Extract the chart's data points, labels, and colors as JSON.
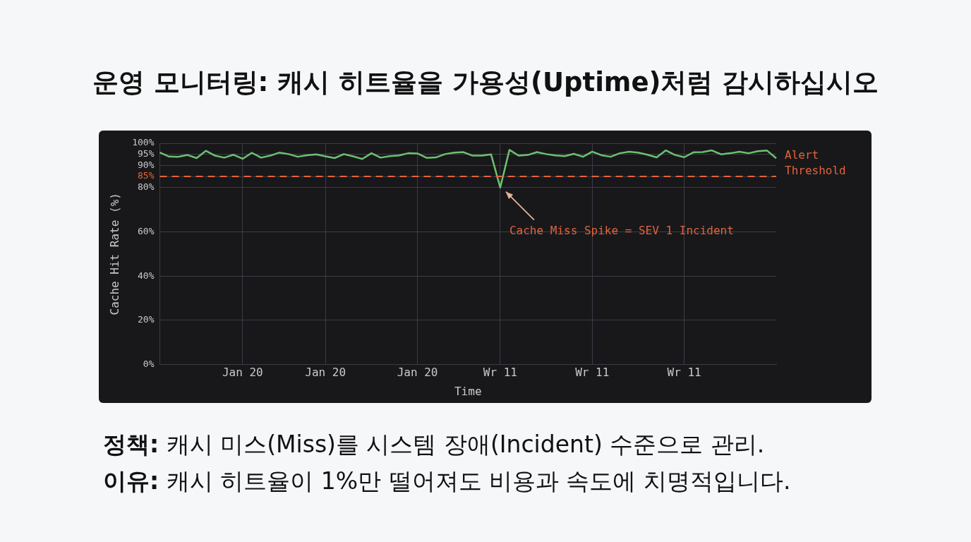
{
  "chart_data": {
    "type": "line",
    "title": "운영 모니터링: 캐시 히트율을 가용성(Uptime)처럼 감시하십시오",
    "xlabel": "Time",
    "ylabel": "Cache Hit Rate (%)",
    "categories": [
      null,
      null,
      null,
      null,
      null,
      null,
      null,
      null,
      null,
      "Jan 20",
      null,
      null,
      null,
      null,
      null,
      null,
      null,
      null,
      "Jan 20",
      null,
      null,
      null,
      null,
      null,
      null,
      null,
      null,
      null,
      "Jan 20",
      null,
      null,
      null,
      null,
      null,
      null,
      null,
      null,
      "Wr 11",
      null,
      null,
      null,
      null,
      null,
      null,
      null,
      null,
      null,
      "Wr 11",
      null,
      null,
      null,
      null,
      null,
      null,
      null,
      null,
      null,
      "Wr 11",
      null,
      null,
      null,
      null,
      null,
      null,
      null,
      null,
      null,
      null
    ],
    "series": [
      {
        "color": "#6cc070",
        "values": [
          95.8,
          94.0,
          93.9,
          94.7,
          93.3,
          96.6,
          94.4,
          93.5,
          94.8,
          93.0,
          95.7,
          93.5,
          94.4,
          95.8,
          95.1,
          93.9,
          94.6,
          95.0,
          94.1,
          93.3,
          95.1,
          94.1,
          92.9,
          95.5,
          93.5,
          94.2,
          94.5,
          95.5,
          95.4,
          93.4,
          93.6,
          95.1,
          95.8,
          96.0,
          94.4,
          94.4,
          95.0,
          80,
          97.0,
          94.4,
          94.7,
          96.0,
          95.1,
          94.5,
          94.2,
          95.2,
          93.9,
          96.2,
          94.6,
          93.9,
          95.5,
          96.2,
          95.8,
          94.8,
          93.6,
          96.8,
          94.7,
          93.7,
          95.9,
          96.0,
          96.8,
          95.0,
          95.5,
          96.2,
          95.5,
          96.4,
          96.7,
          93.2
        ]
      }
    ],
    "ylim": [
      0,
      100
    ],
    "yticks": [
      {
        "value": 0,
        "label": "0%"
      },
      {
        "value": 20,
        "label": "20%"
      },
      {
        "value": 40,
        "label": "40%"
      },
      {
        "value": 60,
        "label": "60%"
      },
      {
        "value": 80,
        "label": "80%"
      },
      {
        "value": 85,
        "label": "85%"
      },
      {
        "value": 90,
        "label": "90%"
      },
      {
        "value": 95,
        "label": "95%"
      },
      {
        "value": 100,
        "label": "100%"
      }
    ],
    "grid": true,
    "marker": "none",
    "line_style": "solid",
    "ref_lines": [
      {
        "axis": "y",
        "value": 85,
        "label": "Alert Threshold",
        "color": "#e0643c",
        "line_style": "dashed"
      }
    ],
    "annotations": [
      "Cache Miss Spike = SEV 1 Incident",
      "정책: 캐시 미스(Miss)를 시스템 장애(Incident) 수준으로 관리.",
      "이유: 캐시 히트율이 1%만 떨어져도 비용과 속도에 치명적입니다."
    ]
  }
}
